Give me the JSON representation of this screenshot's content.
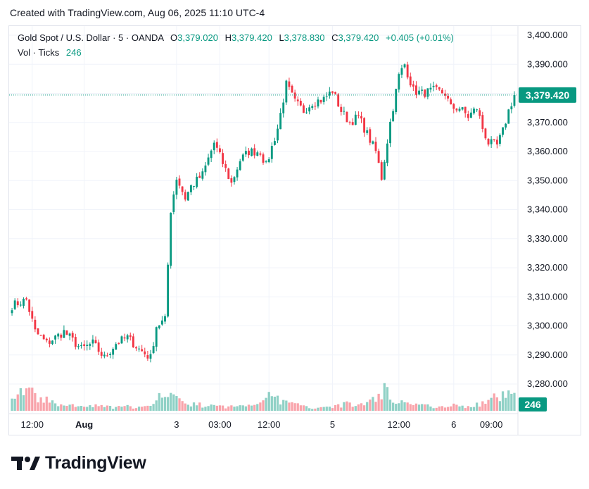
{
  "header": {
    "created_text": "Created with TradingView.com, Aug 06, 2025 11:10 UTC-4"
  },
  "legend": {
    "symbol": "Gold Spot / U.S. Dollar · 5 · OANDA",
    "o_label": "O",
    "o_value": "3,379.020",
    "h_label": "H",
    "h_value": "3,379.420",
    "l_label": "L",
    "l_value": "3,378.830",
    "c_label": "C",
    "c_value": "3,379.420",
    "change": "+0.405 (+0.01%)",
    "vol_label": "Vol · Ticks",
    "vol_value": "246"
  },
  "colors": {
    "up": "#089981",
    "down": "#f23645",
    "grid": "#f0f3fa",
    "axis_text": "#131722"
  },
  "footer": {
    "brand": "TradingView",
    "logo_icon": "tradingview-logo-icon"
  },
  "chart_data": {
    "type": "candlestick",
    "y_axis": {
      "ticks": [
        "3,400.000",
        "3,390.000",
        "3,380.000",
        "3,370.000",
        "3,360.000",
        "3,350.000",
        "3,340.000",
        "3,330.000",
        "3,320.000",
        "3,310.000",
        "3,300.000",
        "3,290.000",
        "3,280.000"
      ],
      "range": [
        3273,
        3403
      ],
      "last_price_label": "3,379.420",
      "last_price": 3379.42,
      "volume_label": "246"
    },
    "x_axis": {
      "ticks": [
        "12:00",
        "Aug",
        "3",
        "03:00",
        "12:00",
        "5",
        "12:00",
        "6",
        "09:00"
      ],
      "tick_index": [
        7,
        25,
        57,
        72,
        89,
        111,
        134,
        153,
        166
      ]
    },
    "price_anchors": [
      [
        0,
        3307
      ],
      [
        5,
        3309
      ],
      [
        8,
        3298
      ],
      [
        12,
        3294
      ],
      [
        18,
        3298
      ],
      [
        24,
        3292
      ],
      [
        28,
        3294
      ],
      [
        32,
        3289
      ],
      [
        36,
        3294
      ],
      [
        40,
        3296
      ],
      [
        44,
        3292
      ],
      [
        48,
        3289
      ],
      [
        50,
        3300
      ],
      [
        53,
        3302
      ],
      [
        55,
        3340
      ],
      [
        57,
        3351
      ],
      [
        60,
        3344
      ],
      [
        62,
        3348
      ],
      [
        66,
        3352
      ],
      [
        70,
        3363
      ],
      [
        73,
        3356
      ],
      [
        76,
        3349
      ],
      [
        79,
        3357
      ],
      [
        82,
        3360
      ],
      [
        86,
        3360
      ],
      [
        88,
        3355
      ],
      [
        92,
        3368
      ],
      [
        95,
        3383
      ],
      [
        98,
        3377
      ],
      [
        101,
        3374
      ],
      [
        104,
        3377
      ],
      [
        108,
        3378
      ],
      [
        111,
        3381
      ],
      [
        114,
        3374
      ],
      [
        117,
        3370
      ],
      [
        120,
        3372
      ],
      [
        123,
        3366
      ],
      [
        126,
        3360
      ],
      [
        128,
        3351
      ],
      [
        131,
        3370
      ],
      [
        134,
        3386
      ],
      [
        136,
        3390
      ],
      [
        139,
        3381
      ],
      [
        142,
        3380
      ],
      [
        146,
        3381
      ],
      [
        150,
        3380
      ],
      [
        152,
        3375
      ],
      [
        155,
        3375
      ],
      [
        158,
        3372
      ],
      [
        161,
        3375
      ],
      [
        163,
        3368
      ],
      [
        165,
        3363
      ],
      [
        168,
        3362
      ],
      [
        170,
        3367
      ],
      [
        172,
        3374
      ],
      [
        174,
        3379.4
      ]
    ],
    "volume_anchors": [
      [
        0,
        12
      ],
      [
        4,
        26
      ],
      [
        8,
        18
      ],
      [
        12,
        12
      ],
      [
        16,
        8
      ],
      [
        20,
        6
      ],
      [
        24,
        5
      ],
      [
        28,
        6
      ],
      [
        32,
        5
      ],
      [
        36,
        4
      ],
      [
        40,
        5
      ],
      [
        44,
        4
      ],
      [
        48,
        5
      ],
      [
        50,
        9
      ],
      [
        52,
        22
      ],
      [
        54,
        28
      ],
      [
        56,
        17
      ],
      [
        58,
        12
      ],
      [
        60,
        9
      ],
      [
        62,
        8
      ],
      [
        65,
        7
      ],
      [
        68,
        6
      ],
      [
        72,
        5
      ],
      [
        76,
        5
      ],
      [
        80,
        6
      ],
      [
        84,
        8
      ],
      [
        86,
        16
      ],
      [
        88,
        24
      ],
      [
        90,
        18
      ],
      [
        92,
        13
      ],
      [
        95,
        10
      ],
      [
        98,
        8
      ],
      [
        101,
        5
      ],
      [
        104,
        4
      ],
      [
        108,
        5
      ],
      [
        112,
        6
      ],
      [
        116,
        8
      ],
      [
        120,
        7
      ],
      [
        123,
        11
      ],
      [
        125,
        13
      ],
      [
        127,
        20
      ],
      [
        129,
        26
      ],
      [
        131,
        17
      ],
      [
        133,
        13
      ],
      [
        136,
        10
      ],
      [
        139,
        9
      ],
      [
        142,
        7
      ],
      [
        145,
        5
      ],
      [
        148,
        6
      ],
      [
        151,
        7
      ],
      [
        155,
        6
      ],
      [
        158,
        5
      ],
      [
        161,
        7
      ],
      [
        164,
        9
      ],
      [
        166,
        12
      ],
      [
        168,
        18
      ],
      [
        170,
        24
      ],
      [
        172,
        20
      ],
      [
        174,
        16
      ]
    ],
    "volume_max": 62,
    "candle_count": 175
  }
}
